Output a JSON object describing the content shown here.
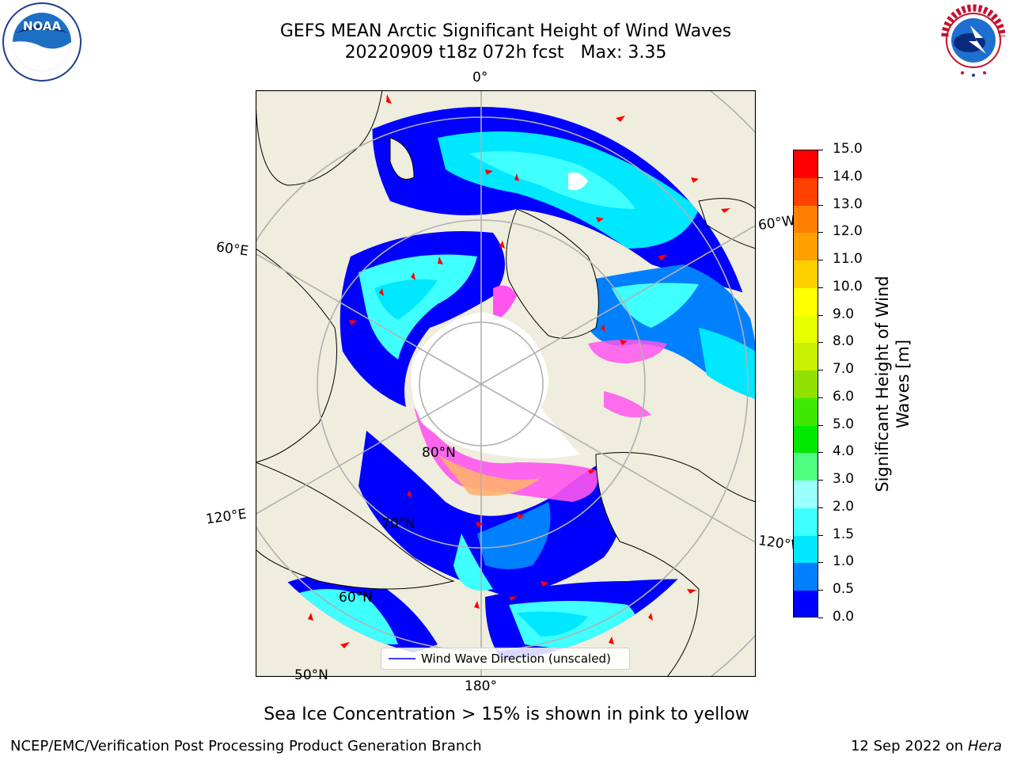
{
  "header": {
    "title_line1": "GEFS MEAN Arctic Significant Height of Wind Waves",
    "title_run": "20220909 t18z 072h fcst",
    "title_max": "Max: 3.35"
  },
  "logos": {
    "left": {
      "icon": "noaa-logo",
      "text": "NOAA"
    },
    "right": {
      "icon": "national-weather-service-logo",
      "text": "NATIONAL WEATHER SERVICE"
    }
  },
  "map": {
    "projection": "north-polar-stereographic",
    "longitude_labels": [
      "0°",
      "60°E",
      "60°W",
      "120°E",
      "120°W",
      "180°"
    ],
    "latitude_labels": [
      "80°N",
      "70°N",
      "60°N",
      "50°N"
    ],
    "colors": {
      "land": "#efeddd",
      "ocean_calm": "#0000ff",
      "ice_center": "#ffffff",
      "sea_ice": "#ff55ee",
      "arrows": "#ff0000"
    },
    "legend_entry": "Wind Wave Direction (unscaled)"
  },
  "colorbar": {
    "label": "Significant Height of Wind Waves [m]",
    "ticks": [
      "0.0",
      "0.5",
      "1.0",
      "1.5",
      "2.0",
      "3.0",
      "4.0",
      "5.0",
      "6.0",
      "7.0",
      "8.0",
      "9.0",
      "10.0",
      "11.0",
      "12.0",
      "13.0",
      "14.0",
      "15.0"
    ],
    "colors": [
      "#0000ff",
      "#0080ff",
      "#00e8ff",
      "#40ffff",
      "#99ffff",
      "#50ff80",
      "#00e800",
      "#40e800",
      "#90e000",
      "#c8f000",
      "#e8ff00",
      "#ffff00",
      "#ffd000",
      "#ffa000",
      "#ff8000",
      "#ff4000",
      "#ff0000"
    ]
  },
  "caption": "Sea Ice Concentration > 15% is shown in pink to yellow",
  "footer": {
    "left": "NCEP/EMC/Verification Post Processing Product Generation Branch",
    "right_date": "12 Sep 2022 on",
    "right_host": "Hera"
  }
}
